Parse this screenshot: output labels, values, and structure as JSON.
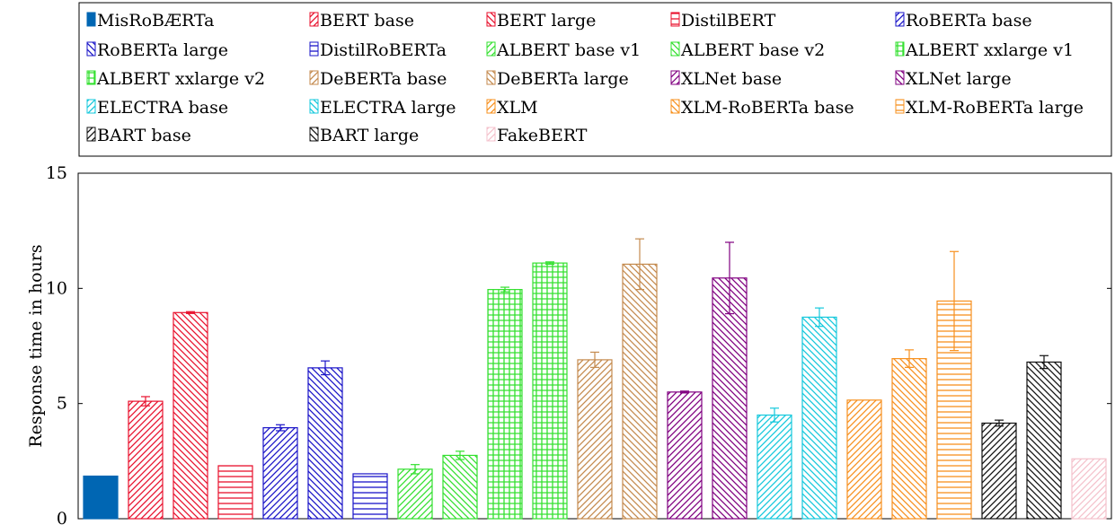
{
  "chart_data": {
    "type": "bar",
    "title": "",
    "xlabel": "",
    "ylabel": "Response time in hours",
    "ylim": [
      0,
      15
    ],
    "yticks": [
      0,
      5,
      10,
      15
    ],
    "grid": false,
    "legend_position": "top",
    "series": [
      {
        "name": "MisRoBÆRTa",
        "value": 1.85,
        "err": 0.0,
        "color": "#0066b3",
        "pattern": "solid"
      },
      {
        "name": "BERT base",
        "value": 5.1,
        "err": 0.2,
        "color": "#e8112d",
        "pattern": "diag-ne"
      },
      {
        "name": "BERT large",
        "value": 8.95,
        "err": 0.04,
        "color": "#e8112d",
        "pattern": "diag-nw"
      },
      {
        "name": "DistilBERT",
        "value": 2.3,
        "err": 0.0,
        "color": "#e8112d",
        "pattern": "horizontal"
      },
      {
        "name": "RoBERTa base",
        "value": 3.95,
        "err": 0.13,
        "color": "#1a14c8",
        "pattern": "diag-ne"
      },
      {
        "name": "RoBERTa large",
        "value": 6.55,
        "err": 0.3,
        "color": "#1a14c8",
        "pattern": "diag-nw"
      },
      {
        "name": "DistilRoBERTa",
        "value": 1.95,
        "err": 0.0,
        "color": "#1a14c8",
        "pattern": "horizontal"
      },
      {
        "name": "ALBERT base v1",
        "value": 2.15,
        "err": 0.2,
        "color": "#33e02f",
        "pattern": "diag-ne"
      },
      {
        "name": "ALBERT base v2",
        "value": 2.75,
        "err": 0.18,
        "color": "#33e02f",
        "pattern": "diag-nw"
      },
      {
        "name": "ALBERT xxlarge v1",
        "value": 9.95,
        "err": 0.1,
        "color": "#33e02f",
        "pattern": "grid"
      },
      {
        "name": "ALBERT xxlarge v2",
        "value": 11.1,
        "err": 0.05,
        "color": "#33e02f",
        "pattern": "grid"
      },
      {
        "name": "DeBERTa base",
        "value": 6.9,
        "err": 0.33,
        "color": "#c48a4e",
        "pattern": "diag-ne"
      },
      {
        "name": "DeBERTa large",
        "value": 11.05,
        "err": 1.1,
        "color": "#c48a4e",
        "pattern": "diag-nw"
      },
      {
        "name": "XLNet base",
        "value": 5.5,
        "err": 0.04,
        "color": "#800080",
        "pattern": "diag-ne"
      },
      {
        "name": "XLNet large",
        "value": 10.45,
        "err": 1.55,
        "color": "#800080",
        "pattern": "diag-nw"
      },
      {
        "name": "ELECTRA base",
        "value": 4.5,
        "err": 0.3,
        "color": "#14c8dc",
        "pattern": "diag-ne"
      },
      {
        "name": "ELECTRA large",
        "value": 8.75,
        "err": 0.4,
        "color": "#14c8dc",
        "pattern": "diag-nw"
      },
      {
        "name": "XLM",
        "value": 5.15,
        "err": 0.0,
        "color": "#f7901e",
        "pattern": "diag-ne"
      },
      {
        "name": "XLM-RoBERTa base",
        "value": 6.95,
        "err": 0.38,
        "color": "#f7901e",
        "pattern": "diag-nw"
      },
      {
        "name": "XLM-RoBERTa large",
        "value": 9.45,
        "err": 2.15,
        "color": "#f7901e",
        "pattern": "horizontal"
      },
      {
        "name": "BART base",
        "value": 4.15,
        "err": 0.13,
        "color": "#111111",
        "pattern": "diag-ne"
      },
      {
        "name": "BART large",
        "value": 6.8,
        "err": 0.28,
        "color": "#111111",
        "pattern": "diag-nw"
      },
      {
        "name": "FakeBERT",
        "value": 2.6,
        "err": 0.0,
        "color": "#f4c2cc",
        "pattern": "diag-ne"
      }
    ]
  }
}
